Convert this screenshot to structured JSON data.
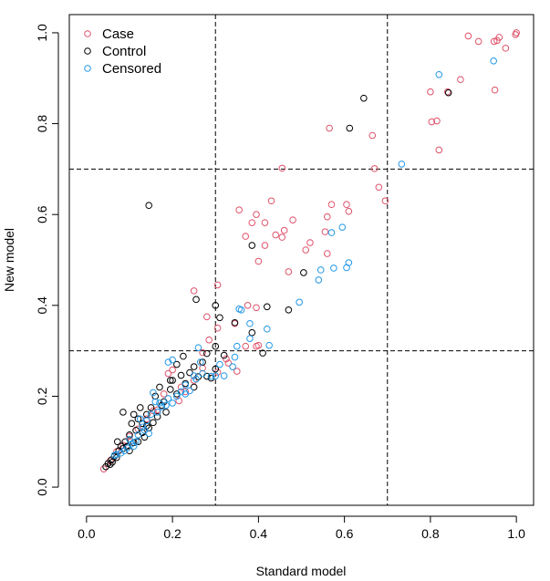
{
  "chart_data": {
    "type": "scatter",
    "title": "",
    "xlabel": "Standard model",
    "ylabel": "New model",
    "xlim": [
      -0.04,
      1.04
    ],
    "ylim": [
      -0.04,
      1.04
    ],
    "xticks": [
      0.0,
      0.2,
      0.4,
      0.6,
      0.8,
      1.0
    ],
    "yticks": [
      0.0,
      0.2,
      0.4,
      0.6,
      0.8,
      1.0
    ],
    "xtick_labels": [
      "0.0",
      "0.2",
      "0.4",
      "0.6",
      "0.8",
      "1.0"
    ],
    "ytick_labels": [
      "0.0",
      "0.2",
      "0.4",
      "0.6",
      "0.8",
      "1.0"
    ],
    "reference_lines": {
      "x": [
        0.3,
        0.7
      ],
      "y": [
        0.3,
        0.7
      ],
      "style": "dashed"
    },
    "legend_position": "top-left",
    "series": [
      {
        "name": "Case",
        "color": "#DF536B",
        "points": [
          [
            1.0,
            1.0
          ],
          [
            0.998,
            0.996
          ],
          [
            0.96,
            0.99
          ],
          [
            0.955,
            0.983
          ],
          [
            0.948,
            0.981
          ],
          [
            0.975,
            0.966
          ],
          [
            0.888,
            0.993
          ],
          [
            0.912,
            0.981
          ],
          [
            0.95,
            0.874
          ],
          [
            0.8,
            0.87
          ],
          [
            0.87,
            0.897
          ],
          [
            0.84,
            0.87
          ],
          [
            0.803,
            0.804
          ],
          [
            0.815,
            0.806
          ],
          [
            0.82,
            0.742
          ],
          [
            0.565,
            0.79
          ],
          [
            0.665,
            0.774
          ],
          [
            0.67,
            0.701
          ],
          [
            0.68,
            0.66
          ],
          [
            0.695,
            0.63
          ],
          [
            0.455,
            0.702
          ],
          [
            0.355,
            0.61
          ],
          [
            0.395,
            0.6
          ],
          [
            0.43,
            0.63
          ],
          [
            0.385,
            0.582
          ],
          [
            0.415,
            0.582
          ],
          [
            0.46,
            0.565
          ],
          [
            0.44,
            0.555
          ],
          [
            0.48,
            0.588
          ],
          [
            0.415,
            0.532
          ],
          [
            0.455,
            0.55
          ],
          [
            0.37,
            0.552
          ],
          [
            0.57,
            0.622
          ],
          [
            0.605,
            0.622
          ],
          [
            0.61,
            0.607
          ],
          [
            0.56,
            0.595
          ],
          [
            0.52,
            0.538
          ],
          [
            0.51,
            0.522
          ],
          [
            0.555,
            0.562
          ],
          [
            0.56,
            0.514
          ],
          [
            0.4,
            0.497
          ],
          [
            0.47,
            0.474
          ],
          [
            0.375,
            0.4
          ],
          [
            0.395,
            0.395
          ],
          [
            0.305,
            0.445
          ],
          [
            0.25,
            0.432
          ],
          [
            0.28,
            0.375
          ],
          [
            0.305,
            0.35
          ],
          [
            0.345,
            0.36
          ],
          [
            0.37,
            0.31
          ],
          [
            0.395,
            0.31
          ],
          [
            0.4,
            0.312
          ],
          [
            0.325,
            0.282
          ],
          [
            0.33,
            0.273
          ],
          [
            0.305,
            0.253
          ],
          [
            0.35,
            0.255
          ],
          [
            0.27,
            0.296
          ],
          [
            0.285,
            0.324
          ],
          [
            0.2,
            0.258
          ],
          [
            0.19,
            0.25
          ],
          [
            0.22,
            0.22
          ],
          [
            0.18,
            0.205
          ],
          [
            0.155,
            0.168
          ],
          [
            0.14,
            0.15
          ],
          [
            0.12,
            0.128
          ],
          [
            0.1,
            0.112
          ],
          [
            0.085,
            0.092
          ],
          [
            0.07,
            0.078
          ],
          [
            0.055,
            0.058
          ],
          [
            0.04,
            0.04
          ],
          [
            0.25,
            0.235
          ],
          [
            0.23,
            0.21
          ],
          [
            0.215,
            0.19
          ],
          [
            0.27,
            0.262
          ],
          [
            0.165,
            0.17
          ]
        ]
      },
      {
        "name": "Control",
        "color": "#000000",
        "points": [
          [
            0.645,
            0.856
          ],
          [
            0.842,
            0.868
          ],
          [
            0.612,
            0.79
          ],
          [
            0.145,
            0.62
          ],
          [
            0.385,
            0.532
          ],
          [
            0.505,
            0.472
          ],
          [
            0.255,
            0.413
          ],
          [
            0.3,
            0.4
          ],
          [
            0.31,
            0.373
          ],
          [
            0.42,
            0.397
          ],
          [
            0.47,
            0.39
          ],
          [
            0.345,
            0.362
          ],
          [
            0.385,
            0.34
          ],
          [
            0.41,
            0.295
          ],
          [
            0.3,
            0.31
          ],
          [
            0.28,
            0.294
          ],
          [
            0.225,
            0.288
          ],
          [
            0.24,
            0.252
          ],
          [
            0.27,
            0.275
          ],
          [
            0.3,
            0.26
          ],
          [
            0.21,
            0.27
          ],
          [
            0.2,
            0.235
          ],
          [
            0.195,
            0.215
          ],
          [
            0.17,
            0.22
          ],
          [
            0.18,
            0.188
          ],
          [
            0.16,
            0.2
          ],
          [
            0.15,
            0.175
          ],
          [
            0.14,
            0.16
          ],
          [
            0.13,
            0.14
          ],
          [
            0.12,
            0.15
          ],
          [
            0.115,
            0.125
          ],
          [
            0.105,
            0.14
          ],
          [
            0.1,
            0.115
          ],
          [
            0.09,
            0.1
          ],
          [
            0.08,
            0.09
          ],
          [
            0.085,
            0.165
          ],
          [
            0.075,
            0.08
          ],
          [
            0.065,
            0.068
          ],
          [
            0.058,
            0.06
          ],
          [
            0.05,
            0.052
          ],
          [
            0.045,
            0.045
          ],
          [
            0.055,
            0.05
          ],
          [
            0.06,
            0.055
          ],
          [
            0.07,
            0.065
          ],
          [
            0.072,
            0.1
          ],
          [
            0.11,
            0.16
          ],
          [
            0.125,
            0.175
          ],
          [
            0.135,
            0.11
          ],
          [
            0.145,
            0.13
          ],
          [
            0.155,
            0.142
          ],
          [
            0.165,
            0.155
          ],
          [
            0.175,
            0.18
          ],
          [
            0.185,
            0.165
          ],
          [
            0.21,
            0.205
          ],
          [
            0.23,
            0.228
          ],
          [
            0.25,
            0.22
          ],
          [
            0.26,
            0.243
          ],
          [
            0.28,
            0.244
          ],
          [
            0.29,
            0.24
          ],
          [
            0.32,
            0.29
          ],
          [
            0.25,
            0.265
          ],
          [
            0.22,
            0.246
          ],
          [
            0.195,
            0.235
          ],
          [
            0.12,
            0.1
          ],
          [
            0.1,
            0.08
          ],
          [
            0.095,
            0.09
          ],
          [
            0.085,
            0.085
          ],
          [
            0.11,
            0.098
          ],
          [
            0.13,
            0.12
          ],
          [
            0.14,
            0.135
          ]
        ]
      },
      {
        "name": "Censored",
        "color": "#2297E6",
        "points": [
          [
            0.82,
            0.908
          ],
          [
            0.947,
            0.938
          ],
          [
            0.733,
            0.711
          ],
          [
            0.595,
            0.572
          ],
          [
            0.61,
            0.494
          ],
          [
            0.605,
            0.483
          ],
          [
            0.575,
            0.482
          ],
          [
            0.545,
            0.478
          ],
          [
            0.54,
            0.456
          ],
          [
            0.495,
            0.407
          ],
          [
            0.57,
            0.56
          ],
          [
            0.355,
            0.392
          ],
          [
            0.36,
            0.39
          ],
          [
            0.38,
            0.36
          ],
          [
            0.42,
            0.348
          ],
          [
            0.38,
            0.327
          ],
          [
            0.425,
            0.312
          ],
          [
            0.35,
            0.31
          ],
          [
            0.26,
            0.307
          ],
          [
            0.34,
            0.265
          ],
          [
            0.345,
            0.286
          ],
          [
            0.32,
            0.245
          ],
          [
            0.29,
            0.244
          ],
          [
            0.27,
            0.25
          ],
          [
            0.25,
            0.245
          ],
          [
            0.265,
            0.275
          ],
          [
            0.24,
            0.212
          ],
          [
            0.21,
            0.2
          ],
          [
            0.19,
            0.195
          ],
          [
            0.175,
            0.177
          ],
          [
            0.165,
            0.165
          ],
          [
            0.15,
            0.16
          ],
          [
            0.14,
            0.146
          ],
          [
            0.13,
            0.132
          ],
          [
            0.12,
            0.115
          ],
          [
            0.115,
            0.1
          ],
          [
            0.105,
            0.095
          ],
          [
            0.095,
            0.086
          ],
          [
            0.088,
            0.08
          ],
          [
            0.08,
            0.075
          ],
          [
            0.07,
            0.072
          ],
          [
            0.065,
            0.07
          ],
          [
            0.19,
            0.275
          ],
          [
            0.2,
            0.28
          ],
          [
            0.155,
            0.208
          ],
          [
            0.16,
            0.188
          ],
          [
            0.17,
            0.185
          ],
          [
            0.185,
            0.18
          ],
          [
            0.2,
            0.185
          ],
          [
            0.22,
            0.21
          ],
          [
            0.23,
            0.225
          ],
          [
            0.255,
            0.238
          ],
          [
            0.1,
            0.105
          ],
          [
            0.11,
            0.09
          ],
          [
            0.125,
            0.15
          ],
          [
            0.135,
            0.125
          ],
          [
            0.145,
            0.118
          ],
          [
            0.23,
            0.205
          ],
          [
            0.31,
            0.27
          ],
          [
            0.3,
            0.245
          ]
        ]
      }
    ]
  }
}
